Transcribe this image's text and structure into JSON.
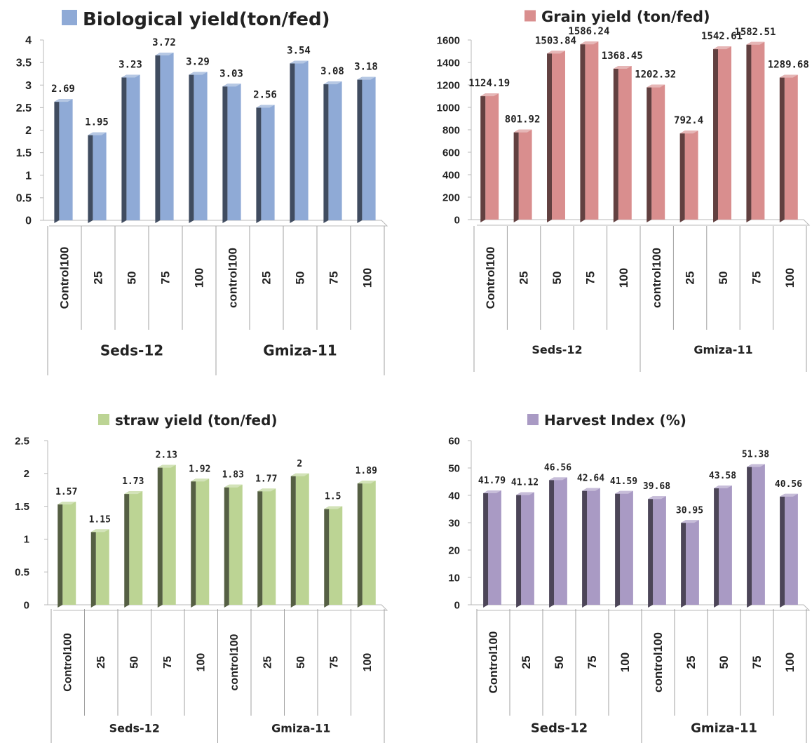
{
  "chart_data": [
    {
      "type": "bar",
      "title": "Biological yield(ton/fed)",
      "color": "#8faad6",
      "categories": [
        "Control100",
        "25",
        "50",
        "75",
        "100",
        "control100",
        "25",
        "50",
        "75",
        "100"
      ],
      "groups": [
        "Seds-12",
        "Gmiza-11"
      ],
      "values": [
        2.69,
        1.95,
        3.23,
        3.72,
        3.29,
        3.03,
        2.56,
        3.54,
        3.08,
        3.18
      ],
      "value_labels": [
        "2.69",
        "1.95",
        "3.23",
        "3.72",
        "3.29",
        "3.03",
        "2.56",
        "3.54",
        "3.08",
        "3.18"
      ],
      "ylim": [
        0,
        4
      ],
      "yticks": [
        "0",
        "0.5",
        "1",
        "1.5",
        "2",
        "2.5",
        "3",
        "3.5",
        "4"
      ]
    },
    {
      "type": "bar",
      "title": "Grain yield (ton/fed)",
      "color": "#d98e8e",
      "categories": [
        "Control100",
        "25",
        "50",
        "75",
        "100",
        "control100",
        "25",
        "50",
        "75",
        "100"
      ],
      "groups": [
        "Seds-12",
        "Gmiza-11"
      ],
      "values": [
        1124.19,
        801.92,
        1503.84,
        1586.24,
        1368.45,
        1202.32,
        792.4,
        1542.61,
        1582.51,
        1289.68
      ],
      "value_labels": [
        "1124.19",
        "801.92",
        "1503.84",
        "1586.24",
        "1368.45",
        "1202.32",
        "792.4",
        "1542.61",
        "1582.51",
        "1289.68"
      ],
      "ylim": [
        0,
        1600
      ],
      "yticks": [
        "0",
        "200",
        "400",
        "600",
        "800",
        "1000",
        "1200",
        "1400",
        "1600"
      ]
    },
    {
      "type": "bar",
      "title": "straw yield (ton/fed)",
      "color": "#bcd494",
      "categories": [
        "Control100",
        "25",
        "50",
        "75",
        "100",
        "control100",
        "25",
        "50",
        "75",
        "100"
      ],
      "groups": [
        "Seds-12",
        "Gmiza-11"
      ],
      "values": [
        1.57,
        1.15,
        1.73,
        2.13,
        1.92,
        1.83,
        1.77,
        2,
        1.5,
        1.89
      ],
      "value_labels": [
        "1.57",
        "1.15",
        "1.73",
        "2.13",
        "1.92",
        "1.83",
        "1.77",
        "2",
        "1.5",
        "1.89"
      ],
      "ylim": [
        0,
        2.5
      ],
      "yticks": [
        "0",
        "0.5",
        "1",
        "1.5",
        "2",
        "2.5"
      ]
    },
    {
      "type": "bar",
      "title": "Harvest Index (%)",
      "color": "#a99ac4",
      "categories": [
        "Control100",
        "25",
        "50",
        "75",
        "100",
        "control100",
        "25",
        "50",
        "75",
        "100"
      ],
      "groups": [
        "Seds-12",
        "Gmiza-11"
      ],
      "values": [
        41.79,
        41.12,
        46.56,
        42.64,
        41.59,
        39.68,
        30.95,
        43.58,
        51.38,
        40.56
      ],
      "value_labels": [
        "41.79",
        "41.12",
        "46.56",
        "42.64",
        "41.59",
        "39.68",
        "30.95",
        "43.58",
        "51.38",
        "40.56"
      ],
      "ylim": [
        0,
        60
      ],
      "yticks": [
        "0",
        "10",
        "20",
        "30",
        "40",
        "50",
        "60"
      ]
    }
  ]
}
